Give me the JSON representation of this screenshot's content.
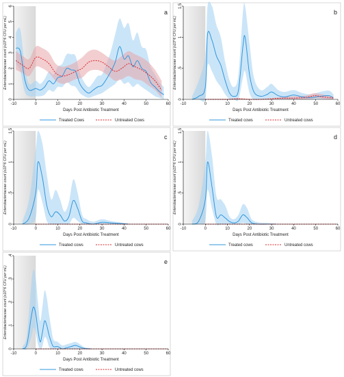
{
  "colors": {
    "treated_line": "#2f97dd",
    "treated_band": "#a9d3f3",
    "untreated_line": "#d9262a",
    "untreated_band": "#e7a6a9",
    "shade": "#d9d9d9"
  },
  "chart_data": [
    {
      "id": "a",
      "type": "line",
      "letter": "a",
      "xlabel": "Days Post Antibiotic Treatment",
      "ylabel": "Enterobacteriaceae count (x10^6 CFU per mL)",
      "xlim": [
        -10,
        60
      ],
      "ylim": [
        0,
        6
      ],
      "xticks": [
        -10,
        0,
        10,
        20,
        30,
        40,
        50,
        60
      ],
      "yticks": [
        0,
        1,
        2,
        3,
        4,
        5,
        6
      ],
      "shaded_x": [
        -10,
        0
      ],
      "legend": [
        "Treated Cows",
        "Untreated Cows"
      ],
      "series": [
        {
          "name": "Treated Cows",
          "style": "solid",
          "x": [
            -9,
            -7,
            -5,
            -3,
            0,
            2,
            4,
            6,
            8,
            10,
            12,
            14,
            16,
            18,
            20,
            22,
            24,
            26,
            28,
            30,
            32,
            34,
            36,
            38,
            40,
            42,
            44,
            46,
            48,
            50,
            52,
            54,
            56,
            58
          ],
          "y": [
            3.3,
            3.1,
            1.3,
            0.6,
            0.7,
            0.6,
            0.8,
            1.2,
            1.0,
            1.4,
            1.5,
            2.0,
            1.9,
            1.8,
            1.0,
            0.6,
            0.4,
            0.6,
            0.8,
            0.9,
            1.3,
            1.8,
            2.4,
            3.4,
            2.6,
            2.8,
            2.1,
            2.5,
            2.0,
            1.8,
            1.1,
            0.8,
            0.5,
            0.3
          ],
          "lower": [
            2.3,
            1.8,
            0.5,
            0.2,
            0.2,
            0.2,
            0.3,
            0.6,
            0.5,
            0.8,
            0.8,
            1.1,
            0.9,
            0.8,
            0.4,
            0.2,
            0.1,
            0.2,
            0.3,
            0.4,
            0.6,
            0.8,
            1.0,
            1.3,
            1.0,
            1.1,
            0.8,
            1.0,
            0.8,
            0.6,
            0.4,
            0.2,
            0.1,
            0.0
          ],
          "upper": [
            4.3,
            4.5,
            2.2,
            1.0,
            1.2,
            1.0,
            1.3,
            1.8,
            1.6,
            2.1,
            2.3,
            2.9,
            2.9,
            2.8,
            1.7,
            1.1,
            0.8,
            1.1,
            1.5,
            1.6,
            2.3,
            3.1,
            4.2,
            5.2,
            4.6,
            4.9,
            3.8,
            4.3,
            3.4,
            3.2,
            2.1,
            1.6,
            1.1,
            0.8
          ]
        },
        {
          "name": "Untreated Cows",
          "style": "dashed",
          "x": [
            -9,
            -6,
            -3,
            0,
            3,
            6,
            9,
            12,
            15,
            18,
            21,
            24,
            27,
            30,
            33,
            36,
            39,
            42,
            45,
            48,
            51,
            54,
            57
          ],
          "y": [
            2.5,
            2.2,
            2.0,
            2.7,
            2.6,
            2.3,
            1.7,
            1.5,
            1.6,
            1.8,
            2.0,
            2.4,
            2.5,
            2.4,
            2.1,
            1.8,
            2.0,
            2.3,
            2.1,
            1.9,
            1.6,
            1.2,
            0.6
          ],
          "lower": [
            1.9,
            1.7,
            1.5,
            2.1,
            2.0,
            1.7,
            1.2,
            1.0,
            1.1,
            1.3,
            1.4,
            1.8,
            1.9,
            1.8,
            1.5,
            1.2,
            1.3,
            1.5,
            1.3,
            1.2,
            0.9,
            0.6,
            0.1
          ],
          "upper": [
            3.1,
            2.8,
            2.6,
            3.4,
            3.3,
            3.0,
            2.3,
            2.1,
            2.2,
            2.4,
            2.7,
            3.1,
            3.2,
            3.0,
            2.7,
            2.5,
            2.8,
            3.1,
            2.9,
            2.7,
            2.4,
            1.9,
            1.2
          ]
        }
      ]
    },
    {
      "id": "b",
      "type": "line",
      "letter": "b",
      "xlabel": "Days Post Antibiotic Treatment",
      "ylabel": "Enterobacteriaceae count (x10^6 CFU per mL)",
      "xlim": [
        -10,
        60
      ],
      "ylim": [
        0,
        1.5
      ],
      "xticks": [
        -10,
        0,
        10,
        20,
        30,
        40,
        50,
        60
      ],
      "yticks": [
        0,
        0.5,
        1,
        1.5
      ],
      "ytick_labels": [
        "0",
        ".5",
        "1",
        "1.5"
      ],
      "shaded_x": [
        -10,
        0
      ],
      "legend": [
        "Treated cows",
        "Untreated cows"
      ],
      "series": [
        {
          "name": "Treated cows",
          "style": "solid",
          "x": [
            -6,
            -3,
            0,
            1,
            3,
            5,
            7,
            9,
            11,
            13,
            15,
            17,
            18,
            20,
            22,
            25,
            28,
            30,
            33,
            36,
            40,
            44,
            48,
            52,
            56,
            58
          ],
          "y": [
            0.0,
            0.05,
            0.2,
            1.05,
            0.95,
            0.7,
            0.55,
            0.3,
            0.1,
            0.05,
            0.15,
            0.85,
            1.0,
            0.4,
            0.12,
            0.05,
            0.08,
            0.12,
            0.06,
            0.04,
            0.07,
            0.04,
            0.03,
            0.05,
            0.06,
            0.02
          ],
          "lower": [
            0.0,
            0.0,
            0.0,
            0.55,
            0.45,
            0.3,
            0.2,
            0.08,
            0.0,
            0.0,
            0.0,
            0.35,
            0.45,
            0.1,
            0.0,
            0.0,
            0.0,
            0.02,
            0.0,
            0.0,
            0.0,
            0.0,
            0.0,
            0.0,
            0.0,
            0.0
          ],
          "upper": [
            0.05,
            0.3,
            0.7,
            1.5,
            1.5,
            1.2,
            1.0,
            0.6,
            0.3,
            0.2,
            0.4,
            1.4,
            1.5,
            0.9,
            0.35,
            0.15,
            0.2,
            0.25,
            0.15,
            0.12,
            0.15,
            0.1,
            0.08,
            0.12,
            0.14,
            0.08
          ]
        },
        {
          "name": "Untreated cows",
          "style": "dashed",
          "x": [
            0,
            5,
            10,
            15,
            20,
            25,
            30,
            35,
            40,
            45,
            48,
            50,
            53,
            56,
            58
          ],
          "y": [
            0.0,
            0.0,
            0.0,
            0.01,
            0.0,
            0.0,
            0.01,
            0.02,
            0.02,
            0.03,
            0.05,
            0.06,
            0.04,
            0.03,
            0.02
          ],
          "lower": [
            0.0,
            0.0,
            0.0,
            0.0,
            0.0,
            0.0,
            0.0,
            0.0,
            0.0,
            0.0,
            0.01,
            0.02,
            0.01,
            0.0,
            0.0
          ],
          "upper": [
            0.01,
            0.01,
            0.01,
            0.02,
            0.01,
            0.01,
            0.02,
            0.04,
            0.05,
            0.06,
            0.09,
            0.1,
            0.08,
            0.06,
            0.05
          ]
        }
      ]
    },
    {
      "id": "c",
      "type": "line",
      "letter": "c",
      "xlabel": "Days Post Antibiotic Treatment",
      "ylabel": "Enterobacteriaceae count (x10^6 CFU per mL)",
      "xlim": [
        -10,
        60
      ],
      "ylim": [
        0,
        1.5
      ],
      "xticks": [
        -10,
        0,
        10,
        20,
        30,
        40,
        50,
        60
      ],
      "yticks": [
        0,
        0.5,
        1,
        1.5
      ],
      "ytick_labels": [
        "0",
        ".5",
        "1",
        "1.5"
      ],
      "shaded_x": [
        -10,
        0
      ],
      "legend": [
        "Treated cows",
        "Untreated cows"
      ],
      "series": [
        {
          "name": "Treated cows",
          "style": "solid",
          "x": [
            -6,
            -3,
            0,
            1,
            3,
            5,
            7,
            9,
            11,
            13,
            15,
            17,
            19,
            21,
            23,
            26,
            30,
            34,
            38,
            42
          ],
          "y": [
            0.0,
            0.1,
            0.5,
            1.0,
            0.75,
            0.3,
            0.12,
            0.2,
            0.15,
            0.05,
            0.12,
            0.38,
            0.25,
            0.05,
            0.02,
            0.0,
            0.03,
            0.02,
            0.01,
            0.0
          ],
          "lower": [
            0.0,
            0.0,
            0.1,
            0.55,
            0.35,
            0.05,
            0.0,
            0.0,
            0.0,
            0.0,
            0.0,
            0.1,
            0.05,
            0.0,
            0.0,
            0.0,
            0.0,
            0.0,
            0.0,
            0.0
          ],
          "upper": [
            0.05,
            0.4,
            1.2,
            1.5,
            1.3,
            0.8,
            0.4,
            0.55,
            0.4,
            0.2,
            0.35,
            0.72,
            0.5,
            0.15,
            0.08,
            0.04,
            0.08,
            0.05,
            0.03,
            0.01
          ]
        },
        {
          "name": "Untreated cows",
          "style": "dashed",
          "x": [
            0,
            10,
            20,
            30,
            40,
            50,
            60
          ],
          "y": [
            0.0,
            0.0,
            0.0,
            0.0,
            0.0,
            0.0,
            0.0
          ],
          "lower": [
            0.0,
            0.0,
            0.0,
            0.0,
            0.0,
            0.0,
            0.0
          ],
          "upper": [
            0.0,
            0.0,
            0.0,
            0.0,
            0.0,
            0.0,
            0.0
          ]
        }
      ]
    },
    {
      "id": "d",
      "type": "line",
      "letter": "d",
      "xlabel": "Days Post Antibiotic Treatment",
      "ylabel": "Enterobacteriaceae count (x10^6 CFU per mL)",
      "xlim": [
        -10,
        60
      ],
      "ylim": [
        0,
        1.5
      ],
      "xticks": [
        -10,
        0,
        10,
        20,
        30,
        40,
        50,
        60
      ],
      "yticks": [
        0,
        0.5,
        1,
        1.5
      ],
      "ytick_labels": [
        "0",
        ".5",
        "1",
        "1.5"
      ],
      "shaded_x": [
        -10,
        0
      ],
      "legend": [
        "Treated cows",
        "Untreated cows"
      ],
      "series": [
        {
          "name": "Treated cows",
          "style": "solid",
          "x": [
            -6,
            -3,
            0,
            1,
            3,
            5,
            7,
            9,
            11,
            13,
            15,
            17,
            19,
            21,
            24,
            28,
            32
          ],
          "y": [
            0.0,
            0.05,
            0.4,
            1.0,
            0.6,
            0.12,
            0.15,
            0.1,
            0.04,
            0.02,
            0.05,
            0.15,
            0.1,
            0.02,
            0.0,
            0.0,
            0.0
          ],
          "lower": [
            0.0,
            0.0,
            0.05,
            0.55,
            0.25,
            0.0,
            0.0,
            0.0,
            0.0,
            0.0,
            0.0,
            0.02,
            0.0,
            0.0,
            0.0,
            0.0,
            0.0
          ],
          "upper": [
            0.05,
            0.3,
            1.0,
            1.5,
            1.1,
            0.45,
            0.4,
            0.3,
            0.12,
            0.08,
            0.15,
            0.32,
            0.25,
            0.08,
            0.03,
            0.02,
            0.01
          ]
        },
        {
          "name": "Untreated cows",
          "style": "dashed",
          "x": [
            0,
            10,
            20,
            30,
            40,
            50,
            60
          ],
          "y": [
            0.0,
            0.0,
            0.0,
            0.0,
            0.0,
            0.0,
            0.0
          ],
          "lower": [
            0.0,
            0.0,
            0.0,
            0.0,
            0.0,
            0.0,
            0.0
          ],
          "upper": [
            0.0,
            0.0,
            0.0,
            0.0,
            0.0,
            0.0,
            0.0
          ]
        }
      ]
    },
    {
      "id": "e",
      "type": "line",
      "letter": "e",
      "xlabel": "Days Post Antibiotic Treatment",
      "ylabel": "Enterobacteriaceae count (x10^6 CFU per mL)",
      "xlim": [
        -10,
        60
      ],
      "ylim": [
        0,
        0.4
      ],
      "xticks": [
        -10,
        0,
        10,
        20,
        30,
        40,
        50,
        60
      ],
      "yticks": [
        0,
        0.1,
        0.2,
        0.3,
        0.4
      ],
      "ytick_labels": [
        "0",
        ".1",
        ".2",
        ".3",
        ".4"
      ],
      "shaded_x": [
        -10,
        0
      ],
      "legend": [
        "Treated cows",
        "Untreated cows"
      ],
      "series": [
        {
          "name": "Treated cows",
          "style": "solid",
          "x": [
            -6,
            -4,
            -2,
            -1,
            0,
            1,
            2,
            3,
            4,
            5,
            6,
            7,
            8,
            10,
            12,
            14,
            16,
            18,
            20,
            22,
            25
          ],
          "y": [
            0.0,
            0.02,
            0.14,
            0.18,
            0.15,
            0.08,
            0.03,
            0.07,
            0.12,
            0.1,
            0.06,
            0.03,
            0.01,
            0.01,
            0.0,
            0.005,
            0.01,
            0.015,
            0.008,
            0.002,
            0.0
          ],
          "lower": [
            0.0,
            0.0,
            0.05,
            0.09,
            0.07,
            0.02,
            0.0,
            0.01,
            0.05,
            0.04,
            0.01,
            0.0,
            0.0,
            0.0,
            0.0,
            0.0,
            0.0,
            0.0,
            0.0,
            0.0,
            0.0
          ],
          "upper": [
            0.01,
            0.06,
            0.28,
            0.34,
            0.3,
            0.2,
            0.12,
            0.18,
            0.25,
            0.22,
            0.15,
            0.09,
            0.04,
            0.03,
            0.015,
            0.02,
            0.025,
            0.03,
            0.02,
            0.008,
            0.002
          ]
        },
        {
          "name": "Untreated cows",
          "style": "dashed",
          "x": [
            0,
            10,
            20,
            30,
            40,
            50,
            60
          ],
          "y": [
            0.0,
            0.0,
            0.0,
            0.0,
            0.0,
            0.0,
            0.0
          ],
          "lower": [
            0.0,
            0.0,
            0.0,
            0.0,
            0.0,
            0.0,
            0.0
          ],
          "upper": [
            0.0,
            0.0,
            0.0,
            0.0,
            0.0,
            0.0,
            0.0
          ]
        }
      ]
    }
  ]
}
